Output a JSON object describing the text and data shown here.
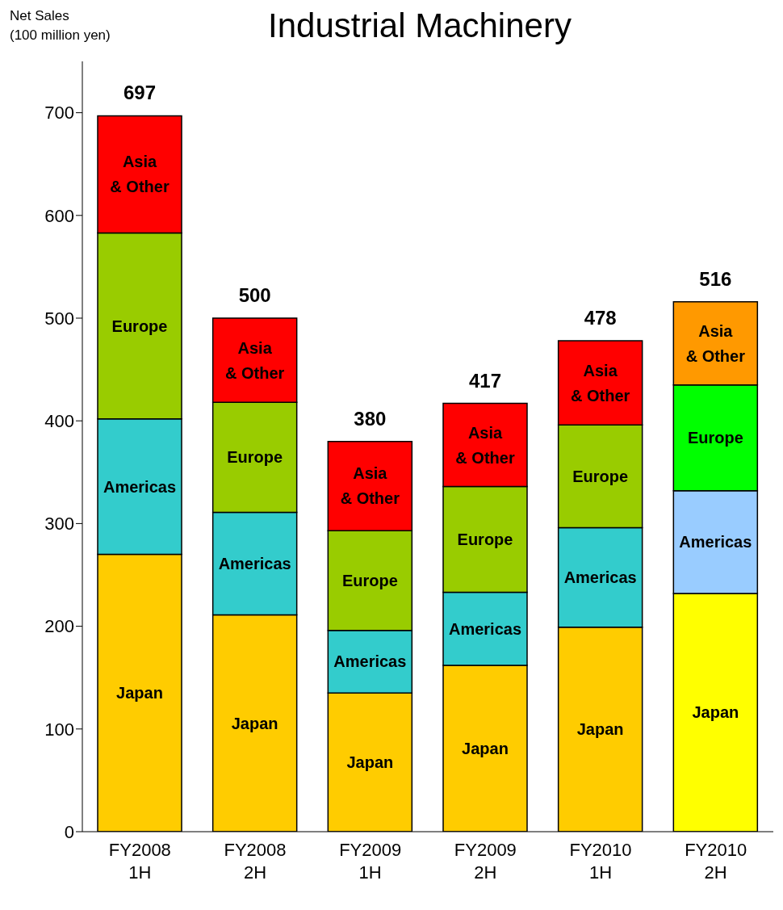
{
  "chart_data": {
    "type": "bar",
    "title": "Industrial Machinery",
    "ylabel": "Net Sales\n(100 million yen)",
    "categories": [
      "FY2008 1H",
      "FY2008 2H",
      "FY2009 1H",
      "FY2009 2H",
      "FY2010 1H",
      "FY2010 2H"
    ],
    "stacked": true,
    "ylim": [
      0,
      750
    ],
    "yticks": [
      0,
      100,
      200,
      300,
      400,
      500,
      600,
      700
    ],
    "grid": false,
    "legend": false,
    "series": [
      {
        "name": "Japan",
        "colors": [
          "#ffcc00",
          "#ffcc00",
          "#ffcc00",
          "#ffcc00",
          "#ffcc00",
          "#ffff00"
        ],
        "values": [
          270,
          211,
          135,
          162,
          199,
          232
        ]
      },
      {
        "name": "Americas",
        "colors": [
          "#33cccc",
          "#33cccc",
          "#33cccc",
          "#33cccc",
          "#33cccc",
          "#99ccff"
        ],
        "values": [
          132,
          100,
          61,
          71,
          97,
          100
        ]
      },
      {
        "name": "Europe",
        "colors": [
          "#99cc00",
          "#99cc00",
          "#99cc00",
          "#99cc00",
          "#99cc00",
          "#00ff00"
        ],
        "values": [
          181,
          107,
          97,
          103,
          100,
          103
        ]
      },
      {
        "name": "Asia & Other",
        "colors": [
          "#ff0000",
          "#ff0000",
          "#ff0000",
          "#ff0000",
          "#ff0000",
          "#ff9900"
        ],
        "values": [
          114,
          82,
          87,
          81,
          82,
          81
        ]
      }
    ],
    "totals": [
      "697",
      "500",
      "380",
      "417",
      "478",
      "516"
    ]
  }
}
